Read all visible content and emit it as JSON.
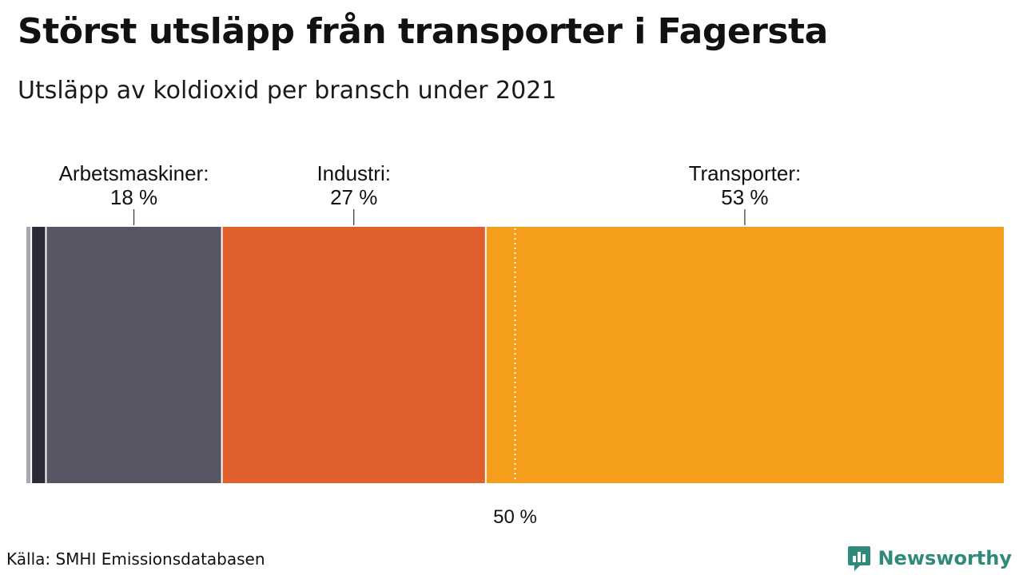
{
  "title": "Störst utsläpp från transporter i Fagersta",
  "subtitle": "Utsläpp av koldioxid per bransch under 2021",
  "source": "Källa: SMHI Emissionsdatabasen",
  "brand": "Newsworthy",
  "chart_data": {
    "type": "bar",
    "stacked": true,
    "orientation": "horizontal",
    "unit": "%",
    "series": [
      {
        "name": "",
        "value": 0.5,
        "color": "#a8a8b0"
      },
      {
        "name": "",
        "value": 1.5,
        "color": "#2b2b38"
      },
      {
        "name": "Arbetsmaskiner:",
        "value": 18,
        "label": "18 %",
        "color": "#575665"
      },
      {
        "name": "Industri:",
        "value": 27,
        "label": "27 %",
        "color": "#e05f2c"
      },
      {
        "name": "Transporter:",
        "value": 53,
        "label": "53 %",
        "color": "#f59e1b"
      }
    ],
    "reference_line": {
      "value": 50,
      "label": "50 %"
    },
    "xlim": [
      0,
      100
    ],
    "grid": false,
    "legend": "none"
  }
}
